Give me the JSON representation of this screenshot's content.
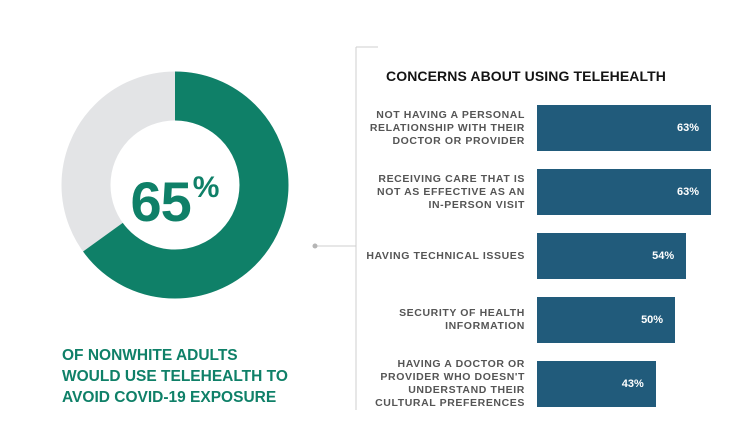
{
  "donut": {
    "value_number": "65",
    "value_symbol": "%",
    "percent": 65,
    "caption_lines": [
      "OF NONWHITE ADULTS",
      "WOULD USE TELEHEALTH TO",
      "AVOID COVID-19 EXPOSURE"
    ],
    "colors": {
      "filled": "#0f8068",
      "remaining": "#e3e4e6"
    }
  },
  "chart_data": {
    "type": "bar",
    "orientation": "horizontal",
    "title": "CONCERNS ABOUT USING TELEHEALTH",
    "categories": [
      [
        "NOT HAVING A PERSONAL",
        "RELATIONSHIP WITH THEIR",
        "DOCTOR OR PROVIDER"
      ],
      [
        "RECEIVING CARE THAT IS",
        "NOT AS EFFECTIVE AS AN",
        "IN-PERSON VISIT"
      ],
      [
        "HAVING TECHNICAL ISSUES"
      ],
      [
        "SECURITY OF HEALTH",
        "INFORMATION"
      ],
      [
        "HAVING A DOCTOR OR",
        "PROVIDER WHO DOESN'T",
        "UNDERSTAND THEIR",
        "CULTURAL PREFERENCES"
      ]
    ],
    "values": [
      63,
      63,
      54,
      50,
      43
    ],
    "value_labels": [
      "63%",
      "63%",
      "54%",
      "50%",
      "43%"
    ],
    "xlim": [
      0,
      63
    ],
    "grid": false,
    "legend": "none",
    "bar_color": "#215b7b"
  }
}
